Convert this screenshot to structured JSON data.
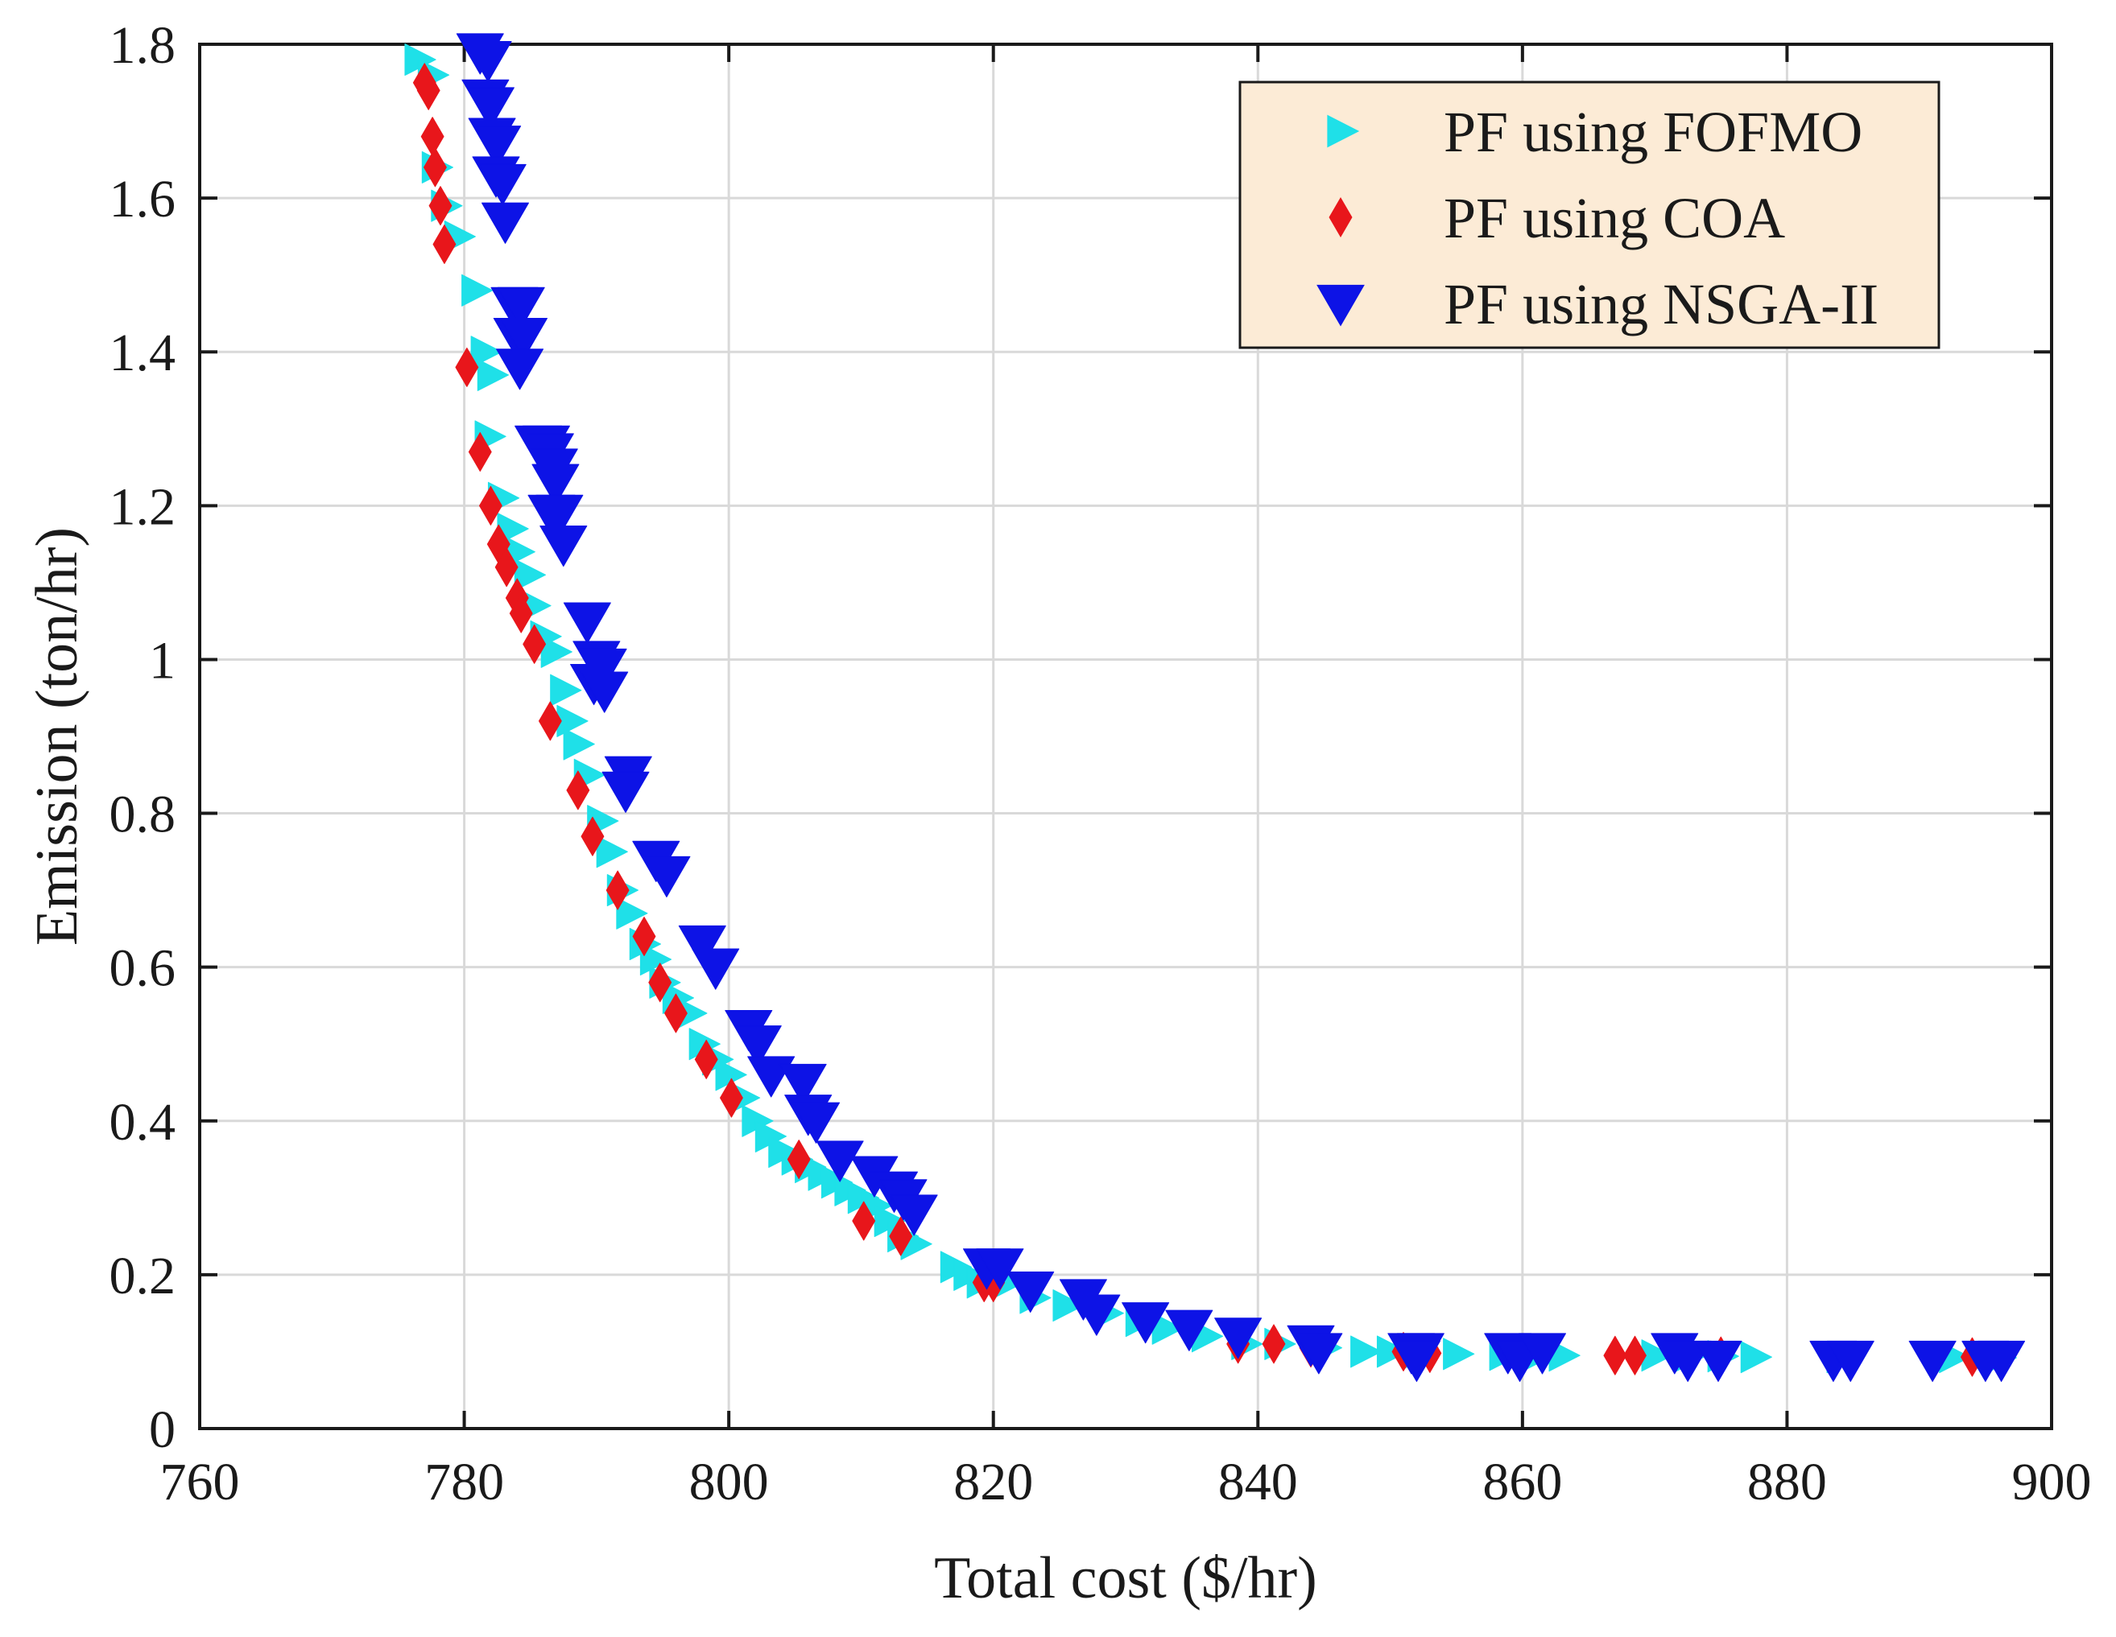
{
  "chart_data": {
    "type": "scatter",
    "title": "",
    "xlabel": "Total cost ($/hr)",
    "ylabel": "Emission (ton/hr)",
    "xlim": [
      760,
      900
    ],
    "ylim": [
      0,
      1.8
    ],
    "xticks": [
      760,
      780,
      800,
      820,
      840,
      860,
      880,
      900
    ],
    "xtick_labels": [
      "760",
      "780",
      "800",
      "820",
      "840",
      "860",
      "880",
      "900"
    ],
    "yticks": [
      0,
      0.2,
      0.4,
      0.6,
      0.8,
      1,
      1.2,
      1.4,
      1.6,
      1.8
    ],
    "ytick_labels": [
      "0",
      "0.2",
      "0.4",
      "0.6",
      "0.8",
      "1",
      "1.2",
      "1.4",
      "1.6",
      "1.8"
    ],
    "grid": true,
    "legend_position": "top-right",
    "series": [
      {
        "name": "PF using FOFMO",
        "marker": "triangle-right",
        "color": "#1FE0E8",
        "points": [
          [
            776.5,
            1.78
          ],
          [
            777.5,
            1.76
          ],
          [
            777.8,
            1.64
          ],
          [
            778.5,
            1.59
          ],
          [
            779.5,
            1.55
          ],
          [
            780.8,
            1.48
          ],
          [
            781.5,
            1.4
          ],
          [
            782.0,
            1.37
          ],
          [
            781.8,
            1.29
          ],
          [
            782.8,
            1.21
          ],
          [
            783.5,
            1.17
          ],
          [
            784.0,
            1.14
          ],
          [
            784.8,
            1.11
          ],
          [
            785.2,
            1.07
          ],
          [
            786.0,
            1.03
          ],
          [
            786.8,
            1.01
          ],
          [
            787.5,
            0.96
          ],
          [
            788.0,
            0.92
          ],
          [
            788.5,
            0.89
          ],
          [
            789.3,
            0.85
          ],
          [
            790.3,
            0.79
          ],
          [
            791.0,
            0.75
          ],
          [
            791.8,
            0.7
          ],
          [
            792.5,
            0.67
          ],
          [
            793.5,
            0.63
          ],
          [
            794.3,
            0.61
          ],
          [
            795.0,
            0.58
          ],
          [
            796.0,
            0.56
          ],
          [
            797.0,
            0.54
          ],
          [
            798.0,
            0.5
          ],
          [
            799.0,
            0.48
          ],
          [
            800.0,
            0.46
          ],
          [
            801.0,
            0.43
          ],
          [
            802.0,
            0.4
          ],
          [
            803.0,
            0.38
          ],
          [
            804.0,
            0.36
          ],
          [
            805.0,
            0.35
          ],
          [
            806.0,
            0.34
          ],
          [
            807.0,
            0.33
          ],
          [
            808.0,
            0.32
          ],
          [
            809.0,
            0.31
          ],
          [
            810.0,
            0.3
          ],
          [
            811.0,
            0.29
          ],
          [
            812.0,
            0.27
          ],
          [
            813.0,
            0.25
          ],
          [
            814.0,
            0.24
          ],
          [
            817.0,
            0.21
          ],
          [
            818.0,
            0.2
          ],
          [
            819.0,
            0.19
          ],
          [
            821.0,
            0.19
          ],
          [
            823.0,
            0.17
          ],
          [
            825.5,
            0.16
          ],
          [
            828.5,
            0.15
          ],
          [
            831.0,
            0.14
          ],
          [
            833.0,
            0.13
          ],
          [
            836.0,
            0.12
          ],
          [
            839.0,
            0.11
          ],
          [
            841.5,
            0.11
          ],
          [
            845.0,
            0.105
          ],
          [
            848.0,
            0.1
          ],
          [
            850.0,
            0.1
          ],
          [
            852.0,
            0.098
          ],
          [
            855.0,
            0.097
          ],
          [
            858.5,
            0.096
          ],
          [
            861.0,
            0.095
          ],
          [
            863.0,
            0.095
          ],
          [
            870.0,
            0.095
          ],
          [
            872.5,
            0.094
          ],
          [
            875.0,
            0.094
          ],
          [
            877.5,
            0.093
          ],
          [
            884.0,
            0.093
          ],
          [
            892.5,
            0.093
          ],
          [
            896.0,
            0.092
          ]
        ]
      },
      {
        "name": "PF using COA",
        "marker": "diamond",
        "color": "#E8161B",
        "points": [
          [
            777.0,
            1.75
          ],
          [
            777.3,
            1.74
          ],
          [
            777.6,
            1.68
          ],
          [
            777.8,
            1.64
          ],
          [
            778.2,
            1.59
          ],
          [
            778.5,
            1.54
          ],
          [
            780.2,
            1.38
          ],
          [
            781.2,
            1.27
          ],
          [
            782.0,
            1.2
          ],
          [
            782.6,
            1.15
          ],
          [
            783.2,
            1.12
          ],
          [
            784.0,
            1.08
          ],
          [
            784.3,
            1.06
          ],
          [
            785.3,
            1.02
          ],
          [
            786.5,
            0.92
          ],
          [
            788.6,
            0.83
          ],
          [
            789.7,
            0.77
          ],
          [
            791.6,
            0.7
          ],
          [
            793.6,
            0.64
          ],
          [
            794.8,
            0.58
          ],
          [
            796.0,
            0.54
          ],
          [
            798.3,
            0.48
          ],
          [
            800.2,
            0.43
          ],
          [
            805.3,
            0.35
          ],
          [
            810.2,
            0.27
          ],
          [
            813.0,
            0.25
          ],
          [
            819.3,
            0.19
          ],
          [
            820.0,
            0.19
          ],
          [
            838.5,
            0.11
          ],
          [
            841.2,
            0.11
          ],
          [
            844.0,
            0.105
          ],
          [
            851.0,
            0.1
          ],
          [
            853.0,
            0.098
          ],
          [
            867.0,
            0.095
          ],
          [
            868.5,
            0.095
          ],
          [
            875.0,
            0.094
          ],
          [
            894.0,
            0.093
          ]
        ]
      },
      {
        "name": "PF using NSGA-II",
        "marker": "triangle-down",
        "color": "#0D13E6",
        "points": [
          [
            781.2,
            1.79
          ],
          [
            781.8,
            1.78
          ],
          [
            781.6,
            1.73
          ],
          [
            782.0,
            1.72
          ],
          [
            782.1,
            1.68
          ],
          [
            782.5,
            1.67
          ],
          [
            782.4,
            1.63
          ],
          [
            782.9,
            1.62
          ],
          [
            783.1,
            1.57
          ],
          [
            783.8,
            1.46
          ],
          [
            784.3,
            1.46
          ],
          [
            784.0,
            1.42
          ],
          [
            784.5,
            1.42
          ],
          [
            784.2,
            1.38
          ],
          [
            785.6,
            1.28
          ],
          [
            786.2,
            1.28
          ],
          [
            786.5,
            1.27
          ],
          [
            786.8,
            1.25
          ],
          [
            786.9,
            1.23
          ],
          [
            786.6,
            1.19
          ],
          [
            787.2,
            1.19
          ],
          [
            787.5,
            1.15
          ],
          [
            789.3,
            1.05
          ],
          [
            790.0,
            1.0
          ],
          [
            790.5,
            0.99
          ],
          [
            789.8,
            0.97
          ],
          [
            790.6,
            0.96
          ],
          [
            792.4,
            0.85
          ],
          [
            792.2,
            0.83
          ],
          [
            794.5,
            0.74
          ],
          [
            795.3,
            0.72
          ],
          [
            798.0,
            0.63
          ],
          [
            799.0,
            0.6
          ],
          [
            801.5,
            0.52
          ],
          [
            802.2,
            0.5
          ],
          [
            803.2,
            0.46
          ],
          [
            805.6,
            0.45
          ],
          [
            806.0,
            0.41
          ],
          [
            806.6,
            0.4
          ],
          [
            808.4,
            0.35
          ],
          [
            811.0,
            0.33
          ],
          [
            812.5,
            0.31
          ],
          [
            813.2,
            0.3
          ],
          [
            814.0,
            0.28
          ],
          [
            819.5,
            0.21
          ],
          [
            820.5,
            0.21
          ],
          [
            822.8,
            0.18
          ],
          [
            826.8,
            0.17
          ],
          [
            827.8,
            0.15
          ],
          [
            831.5,
            0.14
          ],
          [
            834.8,
            0.13
          ],
          [
            838.5,
            0.12
          ],
          [
            844.0,
            0.11
          ],
          [
            844.6,
            0.1
          ],
          [
            851.6,
            0.1
          ],
          [
            852.3,
            0.1
          ],
          [
            852.0,
            0.09
          ],
          [
            858.9,
            0.1
          ],
          [
            859.8,
            0.09
          ],
          [
            861.5,
            0.1
          ],
          [
            871.5,
            0.1
          ],
          [
            872.5,
            0.09
          ],
          [
            874.8,
            0.09
          ],
          [
            883.5,
            0.09
          ],
          [
            884.8,
            0.09
          ],
          [
            891.0,
            0.09
          ],
          [
            895.0,
            0.09
          ],
          [
            896.2,
            0.09
          ]
        ]
      }
    ]
  }
}
